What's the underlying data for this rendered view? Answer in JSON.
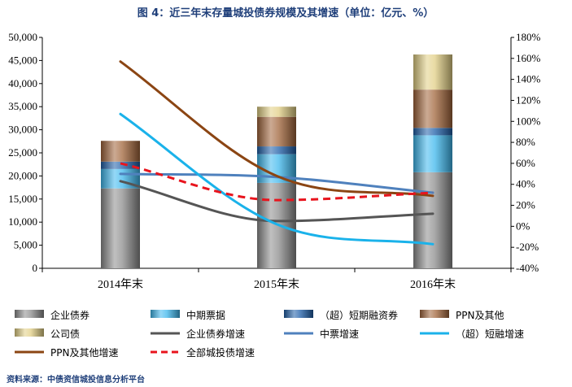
{
  "chart_data": {
    "type": "bar",
    "title": "图 4：近三年末存量城投债券规模及其增速（单位：亿元、%）",
    "categories": [
      "2014年末",
      "2015年末",
      "2016年末"
    ],
    "y_left": {
      "min": 0,
      "max": 50000,
      "step": 5000,
      "tick_labels": [
        "0",
        "5,000",
        "10,000",
        "15,000",
        "20,000",
        "25,000",
        "30,000",
        "35,000",
        "40,000",
        "45,000",
        "50,000"
      ]
    },
    "y_right": {
      "min": -40,
      "max": 180,
      "step": 20,
      "tick_labels": [
        "-40%",
        "-20%",
        "0%",
        "20%",
        "40%",
        "60%",
        "80%",
        "100%",
        "120%",
        "140%",
        "160%",
        "180%"
      ]
    },
    "stacked_series": [
      {
        "name": "企业债券",
        "color": "#8c8c8c",
        "values": [
          17300,
          18500,
          20800
        ]
      },
      {
        "name": "中期票据",
        "color": "#3fb8ee",
        "values": [
          4200,
          6200,
          8000
        ]
      },
      {
        "name": "（超）短期融资券",
        "color": "#1f5fa8",
        "values": [
          1600,
          1700,
          1600
        ]
      },
      {
        "name": "PPN及其他",
        "color": "#a0643a",
        "values": [
          4500,
          6400,
          8300
        ]
      },
      {
        "name": "公司债",
        "color": "#e2cf85",
        "values": [
          0,
          2200,
          7600
        ]
      }
    ],
    "line_series": [
      {
        "name": "企业债券增速",
        "color": "#555555",
        "dash": false,
        "values": [
          43,
          5,
          12
        ]
      },
      {
        "name": "中票增速",
        "color": "#4f81bd",
        "dash": false,
        "values": [
          50,
          47,
          32
        ]
      },
      {
        "name": "（超）短融增速",
        "color": "#1ab2ea",
        "dash": false,
        "values": [
          107,
          2,
          -17
        ]
      },
      {
        "name": "PPN及其他增速",
        "color": "#8b4513",
        "dash": false,
        "values": [
          157,
          48,
          29
        ]
      },
      {
        "name": "全部城投债增速",
        "color": "#e8141d",
        "dash": true,
        "values": [
          60,
          25,
          32
        ]
      }
    ],
    "legend_order": [
      "企业债券",
      "中期票据",
      "（超）短期融资券",
      "PPN及其他",
      "公司债",
      "企业债券增速",
      "中票增速",
      "（超）短融增速",
      "PPN及其他增速",
      "全部城投债增速"
    ],
    "source": "资料来源：中债资信城投信息分析平台"
  }
}
